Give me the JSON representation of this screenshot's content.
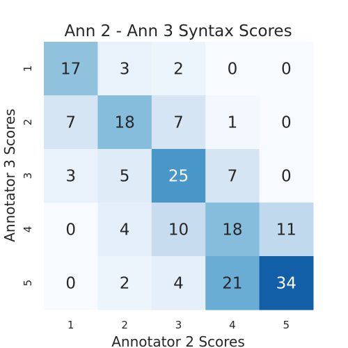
{
  "chart_data": {
    "type": "heatmap",
    "title": "Ann 2 - Ann 3 Syntax Scores",
    "xlabel": "Annotator 2 Scores",
    "ylabel": "Annotator 3 Scores",
    "x_categories": [
      "1",
      "2",
      "3",
      "4",
      "5"
    ],
    "y_categories": [
      "1",
      "2",
      "3",
      "4",
      "5"
    ],
    "values": [
      [
        17,
        3,
        2,
        0,
        0
      ],
      [
        7,
        18,
        7,
        1,
        0
      ],
      [
        3,
        5,
        25,
        7,
        0
      ],
      [
        0,
        4,
        10,
        18,
        11
      ],
      [
        0,
        2,
        4,
        21,
        34
      ]
    ],
    "colormap": "Blues",
    "value_range": [
      0,
      34
    ],
    "grid": false,
    "legend": "none"
  }
}
